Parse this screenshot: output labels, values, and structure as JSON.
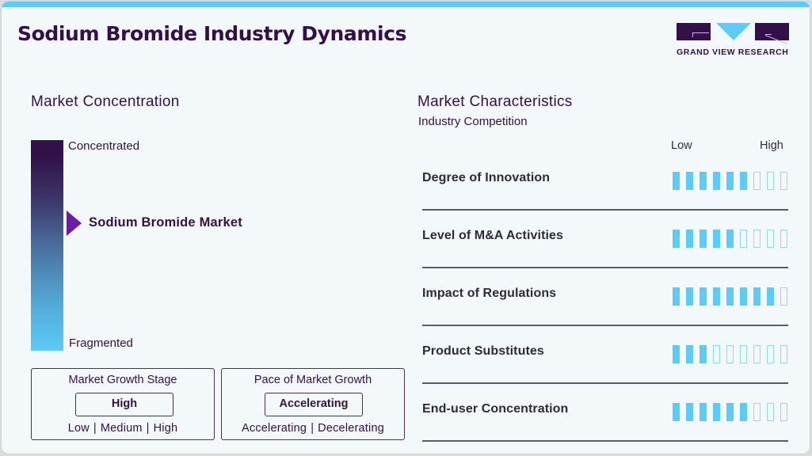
{
  "header": {
    "title": "Sodium Bromide Industry Dynamics",
    "logo_text": "GRAND VIEW RESEARCH"
  },
  "colors": {
    "accent_blue": "#5ccbf5",
    "brand_purple": "#33104a",
    "marker_purple": "#6b1fa0"
  },
  "market_concentration": {
    "title": "Market Concentration",
    "top_label": "Concentrated",
    "bottom_label": "Fragmented",
    "marker_label": "Sodium Bromide Market",
    "marker_position_pct": 39
  },
  "market_growth_stage": {
    "title": "Market Growth Stage",
    "value": "High",
    "options": [
      "Low",
      "Medium",
      "High"
    ]
  },
  "pace_of_market_growth": {
    "title": "Pace of Market Growth",
    "value": "Accelerating",
    "options": [
      "Accelerating",
      "Decelerating"
    ]
  },
  "market_characteristics": {
    "title": "Market Characteristics",
    "subtitle": "Industry Competition",
    "scale_low": "Low",
    "scale_high": "High",
    "max_score": 9,
    "rows": [
      {
        "label": "Degree of Innovation",
        "score": 6
      },
      {
        "label": "Level of M&A Activities",
        "score": 5
      },
      {
        "label": "Impact of Regulations",
        "score": 8
      },
      {
        "label": "Product Substitutes",
        "score": 3
      },
      {
        "label": "End-user Concentration",
        "score": 6
      }
    ]
  }
}
